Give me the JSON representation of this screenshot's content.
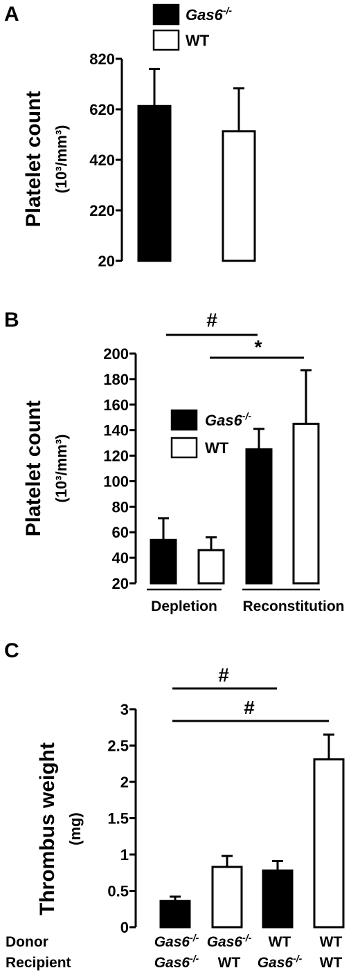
{
  "chart_data": [
    {
      "panel": "A",
      "type": "bar",
      "ylabel_main": "Platelet count",
      "ylabel_unit": "(10³/mm³)",
      "ylim": [
        20,
        820
      ],
      "yticks": [
        "20",
        "220",
        "420",
        "620",
        "820"
      ],
      "legend": [
        {
          "label": "Gas6-/-",
          "base": "Gas6",
          "sup": "-/-",
          "fill": "#000000"
        },
        {
          "label": "WT",
          "base": "WT",
          "sup": "",
          "fill": "#ffffff"
        }
      ],
      "series": [
        {
          "name": "Gas6-/-",
          "fill": "#000000",
          "values": [
            633
          ],
          "errors": [
            147
          ]
        },
        {
          "name": "WT",
          "fill": "#ffffff",
          "values": [
            533
          ],
          "errors": [
            170
          ]
        }
      ]
    },
    {
      "panel": "B",
      "type": "bar",
      "ylabel_main": "Platelet count",
      "ylabel_unit": "(10³/mm³)",
      "ylim": [
        20,
        200
      ],
      "yticks": [
        "20",
        "40",
        "60",
        "80",
        "100",
        "120",
        "140",
        "160",
        "180",
        "200"
      ],
      "categories": [
        "Depletion",
        "Reconstitution"
      ],
      "legend": [
        {
          "label": "Gas6-/-",
          "base": "Gas6",
          "sup": "-/-",
          "fill": "#000000"
        },
        {
          "label": "WT",
          "base": "WT",
          "sup": "",
          "fill": "#ffffff"
        }
      ],
      "series": [
        {
          "name": "Gas6-/-",
          "fill": "#000000",
          "values": [
            54,
            125
          ],
          "errors": [
            17,
            16
          ]
        },
        {
          "name": "WT",
          "fill": "#ffffff",
          "values": [
            46,
            145
          ],
          "errors": [
            10,
            42
          ]
        }
      ],
      "annotations": [
        "#",
        "*"
      ]
    },
    {
      "panel": "C",
      "type": "bar",
      "ylabel_main": "Thrombus weight",
      "ylabel_unit": "(mg)",
      "ylim": [
        0,
        3
      ],
      "yticks": [
        "0",
        "0.5",
        "1",
        "1.5",
        "2",
        "2.5",
        "3"
      ],
      "row_labels": [
        "Donor",
        "Recipient"
      ],
      "donor": [
        "Gas6-/-",
        "Gas6-/-",
        "WT",
        "WT"
      ],
      "recipient": [
        "Gas6-/-",
        "WT",
        "Gas6-/-",
        "WT"
      ],
      "values": [
        0.36,
        0.83,
        0.78,
        2.31
      ],
      "errors": [
        0.06,
        0.15,
        0.13,
        0.34
      ],
      "fills": [
        "#000000",
        "#ffffff",
        "#000000",
        "#ffffff"
      ],
      "annotations": [
        "#",
        "#"
      ]
    }
  ]
}
